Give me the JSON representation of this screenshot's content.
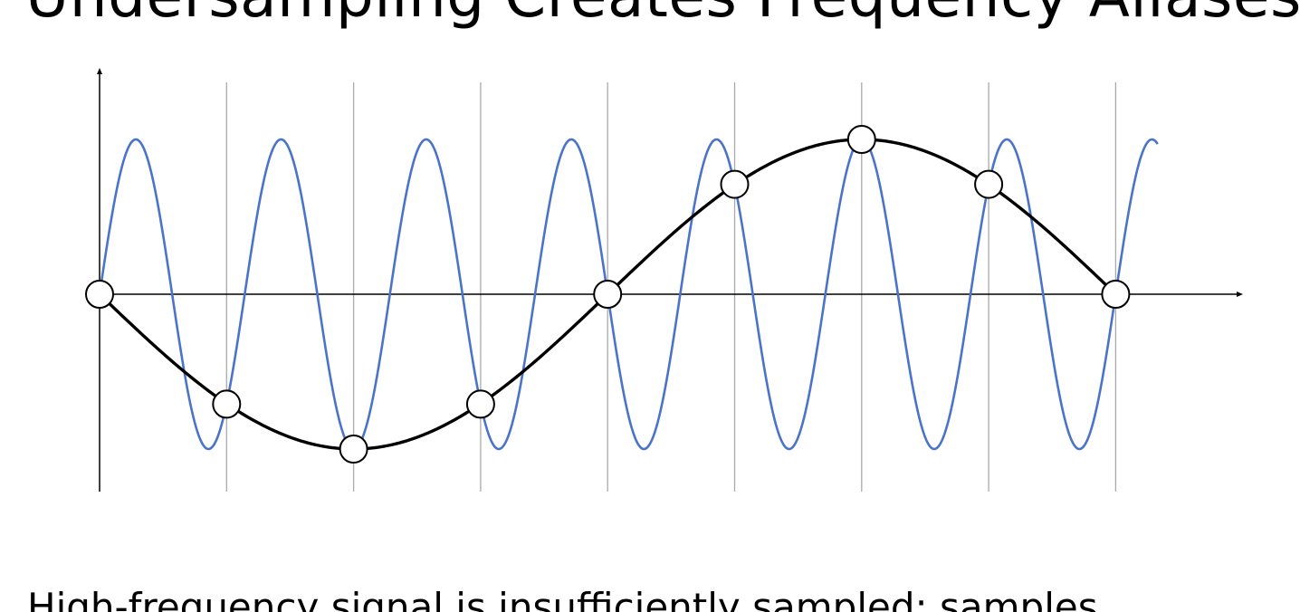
{
  "slide": {
    "title": "Undersampling Creates Frequency Aliases",
    "body_text": "High-frequency signal is insufficiently sampled: samples"
  },
  "colors": {
    "high_frequency_signal": "#4a74c9",
    "alias_signal": "#000000",
    "sample_lines": "#aaaaaa",
    "axes": "#000000",
    "sample_marker_fill": "#ffffff"
  },
  "chart_data": {
    "type": "line",
    "title": "",
    "xlabel": "",
    "ylabel": "",
    "sample_count": 9,
    "sample_interval": 1,
    "series": [
      {
        "cycles_per_sample_interval": 0.875,
        "amplitude": 1.0,
        "x_range": [
          0,
          8.33
        ]
      },
      {
        "cycles_per_sample_interval": 0.125,
        "amplitude": 1.0,
        "phase": "inverted",
        "x_range": [
          0,
          8
        ]
      }
    ],
    "samples": [
      {
        "x": 0,
        "y": 0.0
      },
      {
        "x": 1,
        "y": -0.71
      },
      {
        "x": 2,
        "y": -1.0
      },
      {
        "x": 3,
        "y": -0.71
      },
      {
        "x": 4,
        "y": 0.0
      },
      {
        "x": 5,
        "y": 0.71
      },
      {
        "x": 6,
        "y": 1.0
      },
      {
        "x": 7,
        "y": 0.71
      },
      {
        "x": 8,
        "y": 0.0
      }
    ]
  }
}
